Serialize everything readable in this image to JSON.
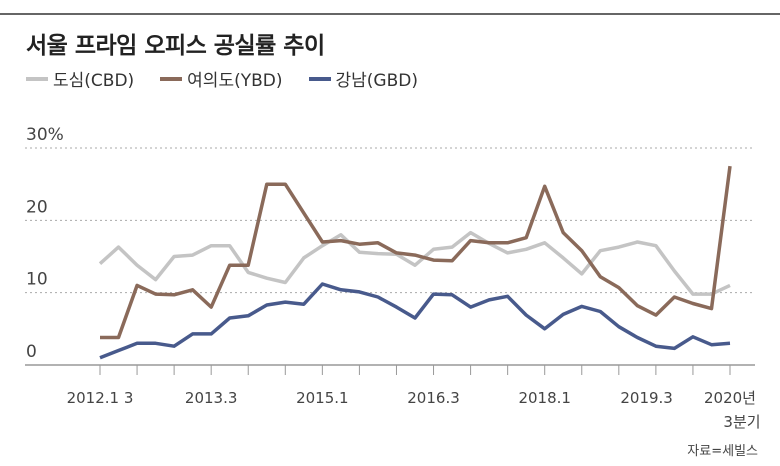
{
  "title": "서울 프라임 오피스 공실률 추이",
  "source": "자료=세빌스",
  "chart_data": {
    "type": "line",
    "title": "서울 프라임 오피스 공실률 추이",
    "xlabel": "",
    "ylabel": "",
    "ylim": [
      0,
      30
    ],
    "yticks": [
      {
        "v": 0,
        "label": "0"
      },
      {
        "v": 10,
        "label": "10"
      },
      {
        "v": 20,
        "label": "20"
      },
      {
        "v": 30,
        "label": "30%"
      }
    ],
    "xtick_count": 18,
    "xtick_labels": [
      {
        "idx": 0,
        "label": "2012.1 3"
      },
      {
        "idx": 6,
        "label": "2013.3"
      },
      {
        "idx": 12,
        "label": "2015.1"
      },
      {
        "idx": 18,
        "label": "2016.3"
      },
      {
        "idx": 24,
        "label": "2018.1"
      },
      {
        "idx": 29.5,
        "label": "2019.3"
      },
      {
        "idx": 34,
        "label": "2020년",
        "label2": "3분기"
      }
    ],
    "legend_position": "top-left",
    "series": [
      {
        "name": "도심(CBD)",
        "color": "#c4c4c4",
        "values": [
          14,
          16.3,
          13.8,
          11.8,
          15,
          15.2,
          16.5,
          16.5,
          12.8,
          12,
          11.4,
          14.8,
          16.5,
          18,
          15.6,
          15.4,
          15.3,
          13.8,
          16,
          16.3,
          18.3,
          16.8,
          15.5,
          16,
          16.9,
          14.8,
          12.6,
          15.8,
          16.3,
          17,
          16.5,
          13,
          9.8,
          9.8,
          11
        ]
      },
      {
        "name": "여의도(YBD)",
        "color": "#8a6a5a",
        "values": [
          3.8,
          3.8,
          11,
          9.8,
          9.7,
          10.4,
          8,
          13.8,
          13.8,
          25,
          25,
          21,
          17,
          17.2,
          16.7,
          16.9,
          15.5,
          15.2,
          14.5,
          14.4,
          17.2,
          16.9,
          16.9,
          17.6,
          24.7,
          18.3,
          15.8,
          12.2,
          10.7,
          8.2,
          6.9,
          9.4,
          8.5,
          7.8,
          27.5
        ]
      },
      {
        "name": "강남(GBD)",
        "color": "#485a8c",
        "values": [
          1,
          2,
          3,
          3,
          2.6,
          4.3,
          4.3,
          6.5,
          6.8,
          8.3,
          8.7,
          8.4,
          11.2,
          10.4,
          10.1,
          9.4,
          8,
          6.5,
          9.8,
          9.7,
          8,
          9,
          9.5,
          6.9,
          5,
          7,
          8.1,
          7.4,
          5.3,
          3.8,
          2.6,
          2.3,
          3.9,
          2.8,
          3
        ]
      }
    ]
  }
}
